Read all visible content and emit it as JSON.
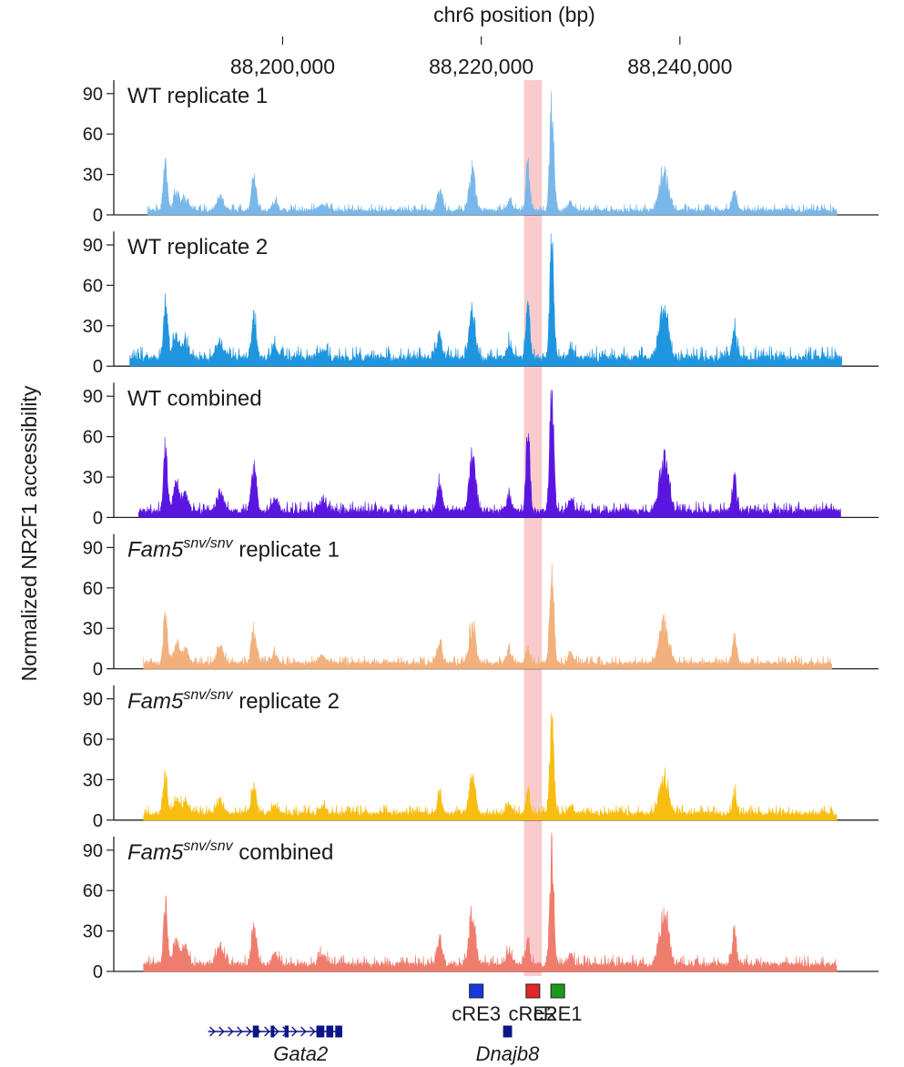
{
  "chart_data": {
    "type": "area",
    "xlabel": "chr6 position (bp)",
    "ylabel": "Normalized NR2F1 accessibility",
    "xlim": [
      88183000,
      88260000
    ],
    "x_ticks": [
      {
        "value": 88200000,
        "label": "88,200,000"
      },
      {
        "value": 88220000,
        "label": "88,220,000"
      },
      {
        "value": 88240000,
        "label": "88,240,000"
      }
    ],
    "ylim": [
      0,
      100
    ],
    "y_ticks": [
      "0",
      "30",
      "60",
      "90"
    ],
    "highlight_region": [
      88224300,
      88226100
    ],
    "highlight_color": "#f7b9bb",
    "peaks": [
      {
        "x": 88188200,
        "w": 200,
        "rel": 1.0
      },
      {
        "x": 88189300,
        "w": 300,
        "rel": 0.4
      },
      {
        "x": 88190200,
        "w": 300,
        "rel": 0.3
      },
      {
        "x": 88193700,
        "w": 350,
        "rel": 0.32
      },
      {
        "x": 88197100,
        "w": 250,
        "rel": 0.72
      },
      {
        "x": 88199200,
        "w": 300,
        "rel": 0.2
      },
      {
        "x": 88204000,
        "w": 400,
        "rel": 0.15
      },
      {
        "x": 88215800,
        "w": 250,
        "rel": 0.45
      },
      {
        "x": 88219100,
        "w": 300,
        "rel": 0.9
      },
      {
        "x": 88222800,
        "w": 250,
        "rel": 0.25
      },
      {
        "x": 88229000,
        "w": 250,
        "rel": 0.2
      },
      {
        "x": 88238400,
        "w": 450,
        "rel": 0.85
      },
      {
        "x": 88245500,
        "w": 200,
        "rel": 0.55
      }
    ],
    "series": [
      {
        "label": "WT replicate 1",
        "color": "#79b7ea",
        "x_start": 88186400,
        "x_end": 88255800,
        "base": 1.4,
        "noise": 3.2,
        "peak_scale": 36,
        "p1": 45,
        "p2": 97
      },
      {
        "label": "WT replicate 2",
        "color": "#1e95de",
        "x_start": 88184600,
        "x_end": 88256300,
        "base": 3.0,
        "noise": 5.5,
        "peak_scale": 44,
        "p1": 48,
        "p2": 96
      },
      {
        "label": "WT combined",
        "color": "#5a16e0",
        "x_start": 88185500,
        "x_end": 88256200,
        "base": 2.2,
        "noise": 4.5,
        "peak_scale": 50,
        "p1": 75,
        "p2": 102
      },
      {
        "label_prefix": "Fam5",
        "label_sup": "snv/snv",
        "label_suffix": " replicate 1",
        "color": "#f2b07c",
        "x_start": 88186000,
        "x_end": 88255300,
        "base": 2.2,
        "noise": 3.4,
        "peak_scale": 40,
        "p1": 14,
        "p2": 88
      },
      {
        "label_prefix": "Fam5",
        "label_sup": "snv/snv",
        "label_suffix": " replicate 2",
        "color": "#f7bd10",
        "x_start": 88186000,
        "x_end": 88255800,
        "base": 2.5,
        "noise": 4.0,
        "peak_scale": 33,
        "p1": 22,
        "p2": 78
      },
      {
        "label_prefix": "Fam5",
        "label_sup": "snv/snv",
        "label_suffix": " combined",
        "color": "#ee7d6e",
        "x_start": 88186000,
        "x_end": 88255800,
        "base": 2.6,
        "noise": 4.5,
        "peak_scale": 48,
        "p1": 20,
        "p2": 98
      }
    ],
    "cres": [
      {
        "label": "cRE3",
        "x": 88219500,
        "color": "#1738e0"
      },
      {
        "label": "cRE2",
        "x": 88225200,
        "color": "#e02828"
      },
      {
        "label": "cRE1",
        "x": 88227700,
        "color": "#1a9a1a"
      }
    ],
    "genes": [
      {
        "name": "Gata2",
        "start": 88192500,
        "end": 88206000,
        "color": "#0c1585",
        "exons": [
          [
            88197000,
            88197600
          ],
          [
            88198800,
            88199100
          ],
          [
            88200200,
            88200600
          ],
          [
            88203400,
            88204200
          ],
          [
            88204400,
            88205100
          ],
          [
            88205300,
            88206000
          ]
        ]
      },
      {
        "name": "Dnajb8",
        "start": 88222200,
        "end": 88223100,
        "color": "#0c1585",
        "exons": [
          [
            88222200,
            88223100
          ]
        ]
      }
    ]
  }
}
